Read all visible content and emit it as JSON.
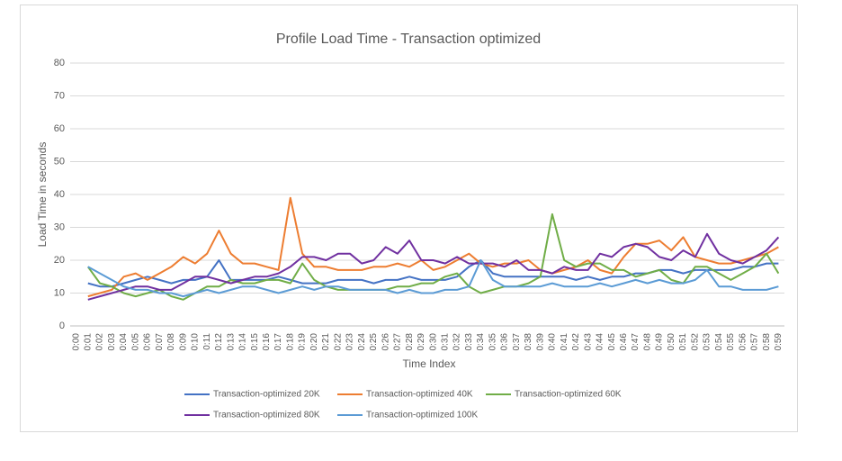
{
  "chart_data": {
    "type": "line",
    "title": "Profile Load Time - Transaction optimized",
    "x_label": "Time Index",
    "y_label": "Load Time in seconds",
    "categories": [
      "0:00",
      "0:01",
      "0:02",
      "0:03",
      "0:04",
      "0:05",
      "0:06",
      "0:07",
      "0:08",
      "0:09",
      "0:10",
      "0:11",
      "0:12",
      "0:13",
      "0:14",
      "0:15",
      "0:16",
      "0:17",
      "0:18",
      "0:19",
      "0:20",
      "0:21",
      "0:22",
      "0:23",
      "0:24",
      "0:25",
      "0:26",
      "0:27",
      "0:28",
      "0:29",
      "0:30",
      "0:31",
      "0:32",
      "0:33",
      "0:34",
      "0:35",
      "0:36",
      "0:37",
      "0:38",
      "0:39",
      "0:40",
      "0:41",
      "0:42",
      "0:43",
      "0:44",
      "0:45",
      "0:46",
      "0:47",
      "0:48",
      "0:49",
      "0:50",
      "0:51",
      "0:52",
      "0:53",
      "0:54",
      "0:55",
      "0:56",
      "0:57",
      "0:58",
      "0:59"
    ],
    "series": [
      {
        "name": "Transaction-optimized 20K",
        "color": "#4472c4",
        "values": [
          null,
          13,
          12,
          12,
          13,
          14,
          15,
          14,
          13,
          14,
          14,
          15,
          20,
          14,
          14,
          14,
          14,
          15,
          14,
          13,
          13,
          13,
          14,
          14,
          14,
          13,
          14,
          14,
          15,
          14,
          14,
          14,
          15,
          18,
          20,
          16,
          15,
          15,
          15,
          15,
          15,
          15,
          14,
          15,
          14,
          15,
          15,
          16,
          16,
          17,
          17,
          16,
          17,
          17,
          17,
          17,
          18,
          18,
          19,
          19
        ]
      },
      {
        "name": "Transaction-optimized 40K",
        "color": "#ed7d31",
        "values": [
          null,
          9,
          10,
          11,
          15,
          16,
          14,
          16,
          18,
          21,
          19,
          22,
          29,
          22,
          19,
          19,
          18,
          17,
          39,
          22,
          18,
          18,
          17,
          17,
          17,
          18,
          18,
          19,
          18,
          20,
          17,
          18,
          20,
          22,
          19,
          18,
          19,
          19,
          20,
          17,
          16,
          17,
          18,
          20,
          17,
          16,
          21,
          25,
          25,
          26,
          23,
          27,
          21,
          20,
          19,
          19,
          20,
          21,
          22,
          24
        ]
      },
      {
        "name": "Transaction-optimized 60K",
        "color": "#70ad47",
        "values": [
          null,
          18,
          13,
          12,
          10,
          9,
          10,
          11,
          9,
          8,
          10,
          12,
          12,
          14,
          13,
          13,
          14,
          14,
          13,
          19,
          14,
          12,
          11,
          11,
          11,
          11,
          11,
          12,
          12,
          13,
          13,
          15,
          16,
          12,
          10,
          11,
          12,
          12,
          13,
          15,
          34,
          20,
          18,
          19,
          19,
          17,
          17,
          15,
          16,
          17,
          14,
          13,
          18,
          18,
          16,
          14,
          16,
          18,
          22,
          16
        ]
      },
      {
        "name": "Transaction-optimized 80K",
        "color": "#7030a0",
        "values": [
          null,
          8,
          9,
          10,
          11,
          12,
          12,
          11,
          11,
          13,
          15,
          15,
          14,
          13,
          14,
          15,
          15,
          16,
          18,
          21,
          21,
          20,
          22,
          22,
          19,
          20,
          24,
          22,
          26,
          20,
          20,
          19,
          21,
          19,
          19,
          19,
          18,
          20,
          17,
          17,
          16,
          18,
          17,
          17,
          22,
          21,
          24,
          25,
          24,
          21,
          20,
          23,
          21,
          28,
          22,
          20,
          19,
          21,
          23,
          27
        ]
      },
      {
        "name": "Transaction-optimized 100K",
        "color": "#5b9bd5",
        "values": [
          null,
          18,
          16,
          14,
          12,
          11,
          11,
          10,
          10,
          9,
          10,
          11,
          10,
          11,
          12,
          12,
          11,
          10,
          11,
          12,
          11,
          12,
          12,
          11,
          11,
          11,
          11,
          10,
          11,
          10,
          10,
          11,
          11,
          12,
          20,
          14,
          12,
          12,
          12,
          12,
          13,
          12,
          12,
          12,
          13,
          12,
          13,
          14,
          13,
          14,
          13,
          13,
          14,
          17,
          12,
          12,
          11,
          11,
          11,
          12
        ]
      }
    ],
    "ylim": [
      0,
      80
    ],
    "yticks": [
      0,
      10,
      20,
      30,
      40,
      50,
      60,
      70,
      80
    ],
    "grid": true,
    "legend": "bottom"
  }
}
